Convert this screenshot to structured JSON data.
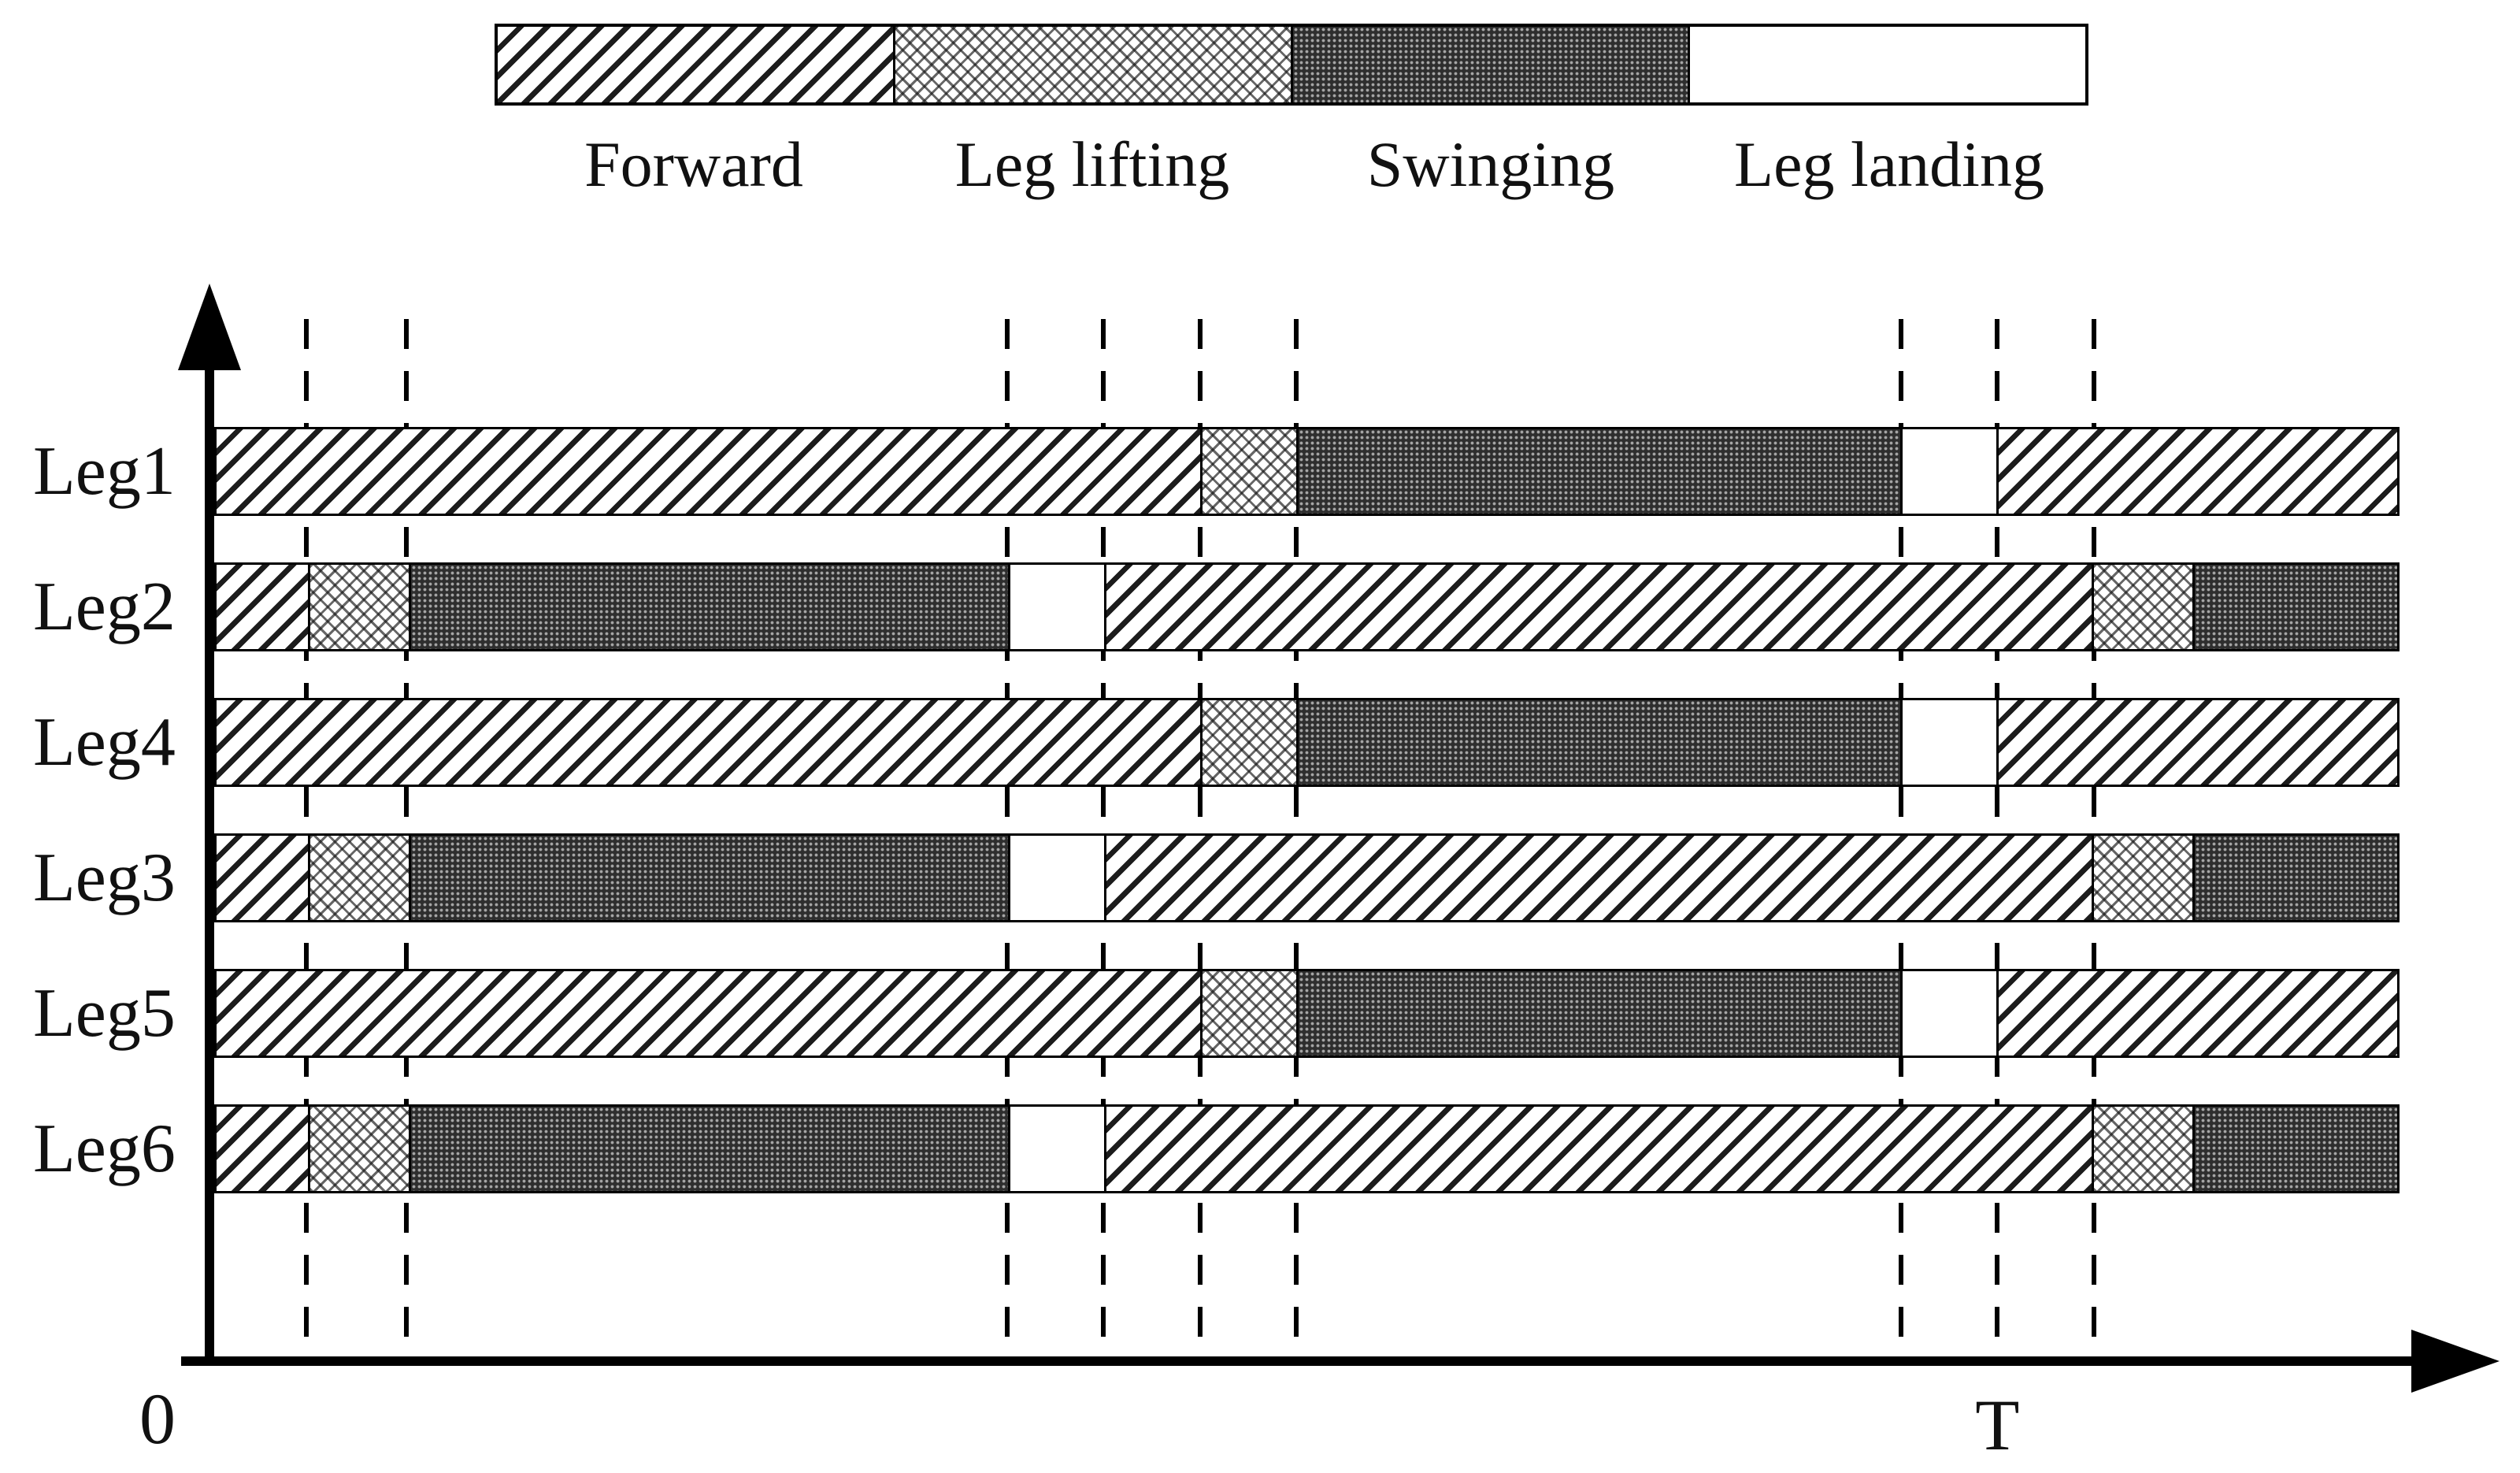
{
  "legend": {
    "items": [
      {
        "label": "Forward",
        "pattern": "forward"
      },
      {
        "label": "Leg lifting",
        "pattern": "lifting"
      },
      {
        "label": "Swinging",
        "pattern": "swinging"
      },
      {
        "label": "Leg landing",
        "pattern": "landing"
      }
    ]
  },
  "axis": {
    "origin_label": "0",
    "t_label": "T",
    "t_fraction": 0.816
  },
  "chart_data": {
    "type": "gantt",
    "xlim": [
      0,
      1
    ],
    "dashed_lines": [
      0.042,
      0.088,
      0.363,
      0.407,
      0.451,
      0.495,
      0.772,
      0.816,
      0.86
    ],
    "rows": [
      {
        "label": "Leg1",
        "segments": [
          {
            "phase": "forward",
            "start": 0,
            "end": 0.451
          },
          {
            "phase": "lifting",
            "start": 0.451,
            "end": 0.495
          },
          {
            "phase": "swinging",
            "start": 0.495,
            "end": 0.772
          },
          {
            "phase": "landing",
            "start": 0.772,
            "end": 0.816
          },
          {
            "phase": "forward",
            "start": 0.816,
            "end": 1.0
          }
        ]
      },
      {
        "label": "Leg2",
        "segments": [
          {
            "phase": "forward",
            "start": 0,
            "end": 0.042
          },
          {
            "phase": "lifting",
            "start": 0.042,
            "end": 0.088
          },
          {
            "phase": "swinging",
            "start": 0.088,
            "end": 0.363
          },
          {
            "phase": "landing",
            "start": 0.363,
            "end": 0.407
          },
          {
            "phase": "forward",
            "start": 0.407,
            "end": 0.86
          },
          {
            "phase": "lifting",
            "start": 0.86,
            "end": 0.906
          },
          {
            "phase": "swinging",
            "start": 0.906,
            "end": 1.0
          }
        ]
      },
      {
        "label": "Leg4",
        "segments": [
          {
            "phase": "forward",
            "start": 0,
            "end": 0.451
          },
          {
            "phase": "lifting",
            "start": 0.451,
            "end": 0.495
          },
          {
            "phase": "swinging",
            "start": 0.495,
            "end": 0.772
          },
          {
            "phase": "landing",
            "start": 0.772,
            "end": 0.816
          },
          {
            "phase": "forward",
            "start": 0.816,
            "end": 1.0
          }
        ]
      },
      {
        "label": "Leg3",
        "segments": [
          {
            "phase": "forward",
            "start": 0,
            "end": 0.042
          },
          {
            "phase": "lifting",
            "start": 0.042,
            "end": 0.088
          },
          {
            "phase": "swinging",
            "start": 0.088,
            "end": 0.363
          },
          {
            "phase": "landing",
            "start": 0.363,
            "end": 0.407
          },
          {
            "phase": "forward",
            "start": 0.407,
            "end": 0.86
          },
          {
            "phase": "lifting",
            "start": 0.86,
            "end": 0.906
          },
          {
            "phase": "swinging",
            "start": 0.906,
            "end": 1.0
          }
        ]
      },
      {
        "label": "Leg5",
        "segments": [
          {
            "phase": "forward",
            "start": 0,
            "end": 0.451
          },
          {
            "phase": "lifting",
            "start": 0.451,
            "end": 0.495
          },
          {
            "phase": "swinging",
            "start": 0.495,
            "end": 0.772
          },
          {
            "phase": "landing",
            "start": 0.772,
            "end": 0.816
          },
          {
            "phase": "forward",
            "start": 0.816,
            "end": 1.0
          }
        ]
      },
      {
        "label": "Leg6",
        "segments": [
          {
            "phase": "forward",
            "start": 0,
            "end": 0.042
          },
          {
            "phase": "lifting",
            "start": 0.042,
            "end": 0.088
          },
          {
            "phase": "swinging",
            "start": 0.088,
            "end": 0.363
          },
          {
            "phase": "landing",
            "start": 0.363,
            "end": 0.407
          },
          {
            "phase": "forward",
            "start": 0.407,
            "end": 0.86
          },
          {
            "phase": "lifting",
            "start": 0.86,
            "end": 0.906
          },
          {
            "phase": "swinging",
            "start": 0.906,
            "end": 1.0
          }
        ]
      }
    ]
  }
}
